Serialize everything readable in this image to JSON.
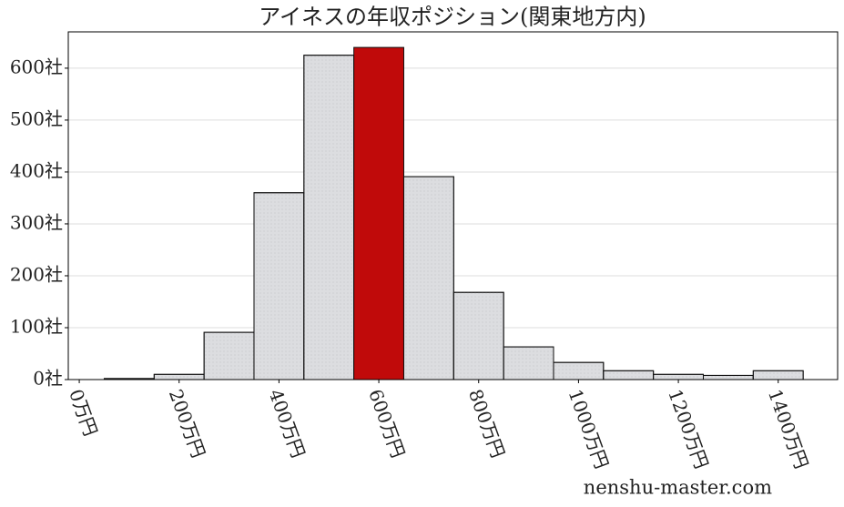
{
  "chart_data": {
    "type": "histogram",
    "title": "アイネスの年収ポジション(関東地方内)",
    "bins": [
      50,
      150,
      250,
      350,
      450,
      550,
      650,
      750,
      850,
      950,
      1050,
      1150,
      1250,
      1350,
      1450
    ],
    "values": [
      2,
      10,
      91,
      360,
      625,
      640,
      391,
      168,
      63,
      33,
      17,
      10,
      8,
      17
    ],
    "colors": [
      "#dcdde0",
      "#dcdde0",
      "#dcdde0",
      "#dcdde0",
      "#dcdde0",
      "#c00a0a",
      "#dcdde0",
      "#dcdde0",
      "#dcdde0",
      "#dcdde0",
      "#dcdde0",
      "#dcdde0",
      "#dcdde0",
      "#dcdde0"
    ],
    "xlim": [
      -22,
      1519
    ],
    "ylim": [
      0,
      670
    ],
    "xticks": [
      {
        "value": 0,
        "label": "0万円"
      },
      {
        "value": 200,
        "label": "200万円"
      },
      {
        "value": 400,
        "label": "400万円"
      },
      {
        "value": 600,
        "label": "600万円"
      },
      {
        "value": 800,
        "label": "800万円"
      },
      {
        "value": 1000,
        "label": "1000万円"
      },
      {
        "value": 1200,
        "label": "1200万円"
      },
      {
        "value": 1400,
        "label": "1400万円"
      }
    ],
    "yticks": [
      {
        "value": 0,
        "label": "0社"
      },
      {
        "value": 100,
        "label": "100社"
      },
      {
        "value": 200,
        "label": "200社"
      },
      {
        "value": 300,
        "label": "300社"
      },
      {
        "value": 400,
        "label": "400社"
      },
      {
        "value": 500,
        "label": "500社"
      },
      {
        "value": 600,
        "label": "600社"
      }
    ],
    "grid": true,
    "watermark": "nenshu-master.com"
  }
}
